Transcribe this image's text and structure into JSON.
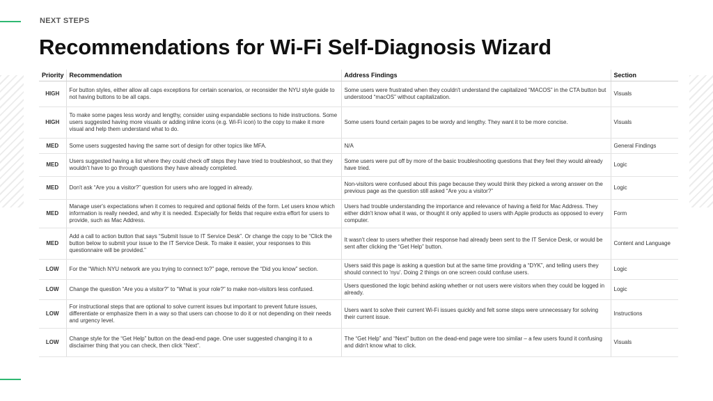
{
  "eyebrow": "NEXT STEPS",
  "title": "Recommendations for Wi-Fi Self-Diagnosis Wizard",
  "table": {
    "headers": [
      "Priority",
      "Recommendation",
      "Address Findings",
      "Section"
    ],
    "rows": [
      {
        "priority": "HIGH",
        "recommendation": "For button styles, either allow all caps exceptions for certain scenarios, or reconsider the NYU style guide to not having buttons to be all caps.",
        "finding": "Some users were frustrated when they couldn't understand the capitalized “MACOS” in the CTA button but understood “macOS” without capitalization.",
        "section": "Visuals"
      },
      {
        "priority": "HIGH",
        "recommendation": "To make some pages less wordy and lengthy, consider using expandable sections to hide instructions. Some users suggested having more visuals or adding inline icons (e.g. Wi-Fi icon) to the copy to make it more visual and help them understand what to do.",
        "finding": "Some users found certain pages to be wordy and lengthy. They want it to be more concise.",
        "section": "Visuals"
      },
      {
        "priority": "MED",
        "recommendation": "Some users suggested having the same sort of design for other topics like MFA.",
        "finding": "N/A",
        "section": "General Findings"
      },
      {
        "priority": "MED",
        "recommendation": "Users suggested having a list where they could check off steps they have tried to troubleshoot, so that they wouldn't have to go through questions they have already completed.",
        "finding": "Some users were put off by more of the basic troubleshooting questions that they feel they would already have tried.",
        "section": "Logic"
      },
      {
        "priority": "MED",
        "recommendation": "Don't ask “Are you a visitor?” question for users who are logged in already.",
        "finding": "Non-visitors were confused about this page because they would think they picked a wrong answer on the previous page as the question still asked “Are you a visitor?”",
        "section": "Logic"
      },
      {
        "priority": "MED",
        "recommendation": "Manage user's expectations when it comes to required and optional fields of the form. Let users know which information is really needed, and why it is needed. Especially for fields that require extra effort for users to provide, such as Mac Address.",
        "finding": "Users had trouble understanding the importance and relevance of having a field for Mac Address. They either didn't know what it was, or thought it only applied to users with Apple products as opposed to every computer.",
        "section": "Form"
      },
      {
        "priority": "MED",
        "recommendation": "Add a call to action button that says “Submit Issue to IT Service Desk”. Or change the copy to be “Click the button below to submit your issue to the IT Service Desk. To make it easier, your responses to this questionnaire will be provided.”",
        "finding": "It wasn't clear to users whether their response had already been sent to the IT Service Desk, or would be sent after clicking the “Get Help” button.",
        "section": "Content and Language"
      },
      {
        "priority": "LOW",
        "recommendation": "For the “Which NYU network are you trying to connect to?” page, remove the “Did you know” section.",
        "finding": "Users said this page is asking a question but at the same time providing a “DYK”, and telling users they should connect to 'nyu'. Doing 2 things on one screen could confuse users.",
        "section": "Logic"
      },
      {
        "priority": "LOW",
        "recommendation": "Change the question “Are you a visitor?” to “What is your role?” to make non-visitors less confused.",
        "finding": "Users questioned the logic behind asking whether or not users were visitors when they could be logged in already.",
        "section": "Logic"
      },
      {
        "priority": "LOW",
        "recommendation": "For instructional steps that are optional to solve current issues but important to prevent future issues, differentiate or emphasize them in a way so that users can choose to do it or not depending on their needs and urgency level.",
        "finding": "Users want to solve their current Wi-Fi issues quickly and felt some steps were unnecessary for solving their current issue.",
        "section": "Instructions"
      },
      {
        "priority": "LOW",
        "recommendation": "Change style for the “Get Help” button on the dead-end page. One user suggested changing it to a disclaimer thing that you can check, then click “Next”.",
        "finding": "The “Get Help” and “Next” button on the dead-end page were too similar – a few users found it confusing and didn't know what to click.",
        "section": "Visuals"
      }
    ]
  },
  "colors": {
    "HIGH": "#d6277a",
    "MED": "#e35a1d",
    "LOW": "#2ea84f",
    "accent": "#2eb872"
  }
}
